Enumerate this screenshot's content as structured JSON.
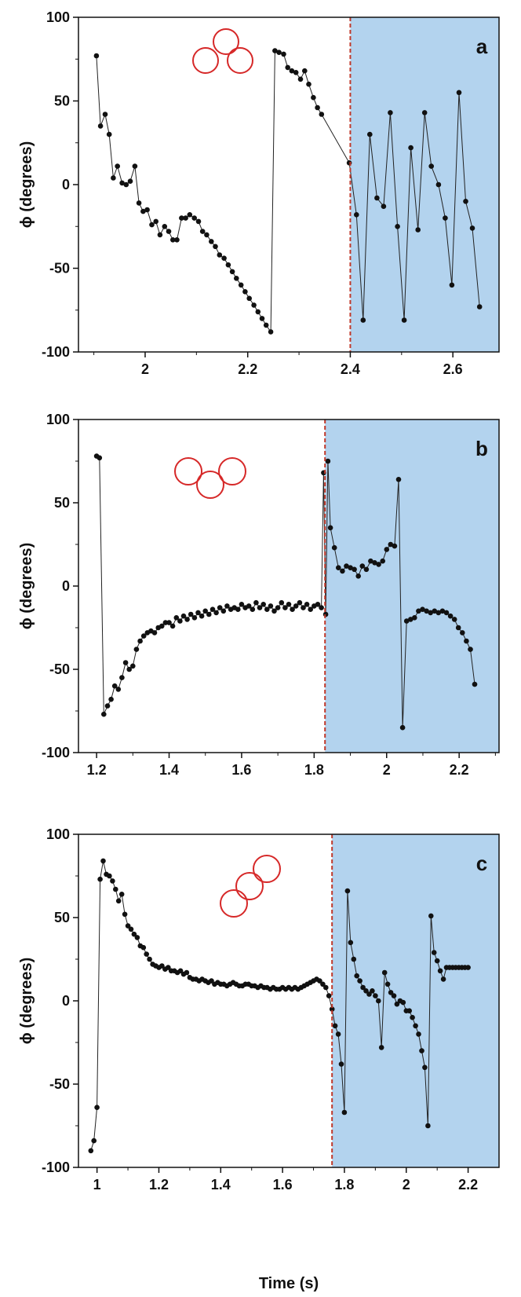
{
  "figure": {
    "xlabel": "Time (s)",
    "ylabel": "ϕ  (degrees)",
    "colors": {
      "shade": "#b3d3ee",
      "marker": "#111111",
      "line": "#222222",
      "divider": "#c0392b",
      "circle": "#d62828"
    }
  },
  "chart_data": [
    {
      "type": "line",
      "panel_label": "a",
      "icon": "three-circles-triangle-icon",
      "xlim": [
        1.87,
        2.69
      ],
      "ylim": [
        -100,
        100
      ],
      "xticks": [
        2,
        2.2,
        2.4,
        2.6
      ],
      "xtick_labels": [
        "2",
        "2.2",
        "2.4",
        "2.6"
      ],
      "yticks": [
        -100,
        -50,
        0,
        50,
        100
      ],
      "ytick_labels": [
        "-100",
        "-50",
        "0",
        "50",
        "100"
      ],
      "transition_x": 2.4,
      "x": [
        1.905,
        1.913,
        1.922,
        1.93,
        1.938,
        1.946,
        1.955,
        1.963,
        1.971,
        1.98,
        1.988,
        1.996,
        2.004,
        2.013,
        2.021,
        2.029,
        2.038,
        2.046,
        2.054,
        2.062,
        2.071,
        2.079,
        2.087,
        2.096,
        2.104,
        2.112,
        2.12,
        2.129,
        2.137,
        2.145,
        2.154,
        2.162,
        2.17,
        2.178,
        2.187,
        2.195,
        2.203,
        2.212,
        2.22,
        2.228,
        2.236,
        2.245,
        2.253,
        2.261,
        2.27,
        2.278,
        2.286,
        2.294,
        2.303,
        2.311,
        2.319,
        2.328,
        2.336,
        2.344,
        2.398,
        2.412,
        2.425,
        2.438,
        2.452,
        2.465,
        2.478,
        2.492,
        2.505,
        2.518,
        2.532,
        2.545,
        2.558,
        2.572,
        2.585,
        2.598,
        2.612,
        2.625,
        2.638,
        2.652
      ],
      "y": [
        77,
        35,
        42,
        30,
        4,
        11,
        1,
        0,
        2,
        11,
        -11,
        -16,
        -15,
        -24,
        -22,
        -30,
        -25,
        -28,
        -33,
        -33,
        -20,
        -20,
        -18,
        -20,
        -22,
        -28,
        -30,
        -34,
        -37,
        -42,
        -44,
        -48,
        -52,
        -56,
        -60,
        -64,
        -68,
        -72,
        -76,
        -80,
        -84,
        -88,
        80,
        79,
        78,
        70,
        68,
        67,
        63,
        68,
        60,
        52,
        46,
        42,
        13,
        -18,
        -81,
        30,
        -8,
        -13,
        43,
        -25,
        -81,
        22,
        -27,
        43,
        11,
        0,
        -20,
        -60,
        55,
        -10,
        -26,
        -73
      ]
    },
    {
      "type": "line",
      "panel_label": "b",
      "icon": "three-circles-chain-icon",
      "xlim": [
        1.15,
        2.31
      ],
      "ylim": [
        -100,
        100
      ],
      "xticks": [
        1.2,
        1.4,
        1.6,
        1.8,
        2,
        2.2
      ],
      "xtick_labels": [
        "1.2",
        "1.4",
        "1.6",
        "1.8",
        "2",
        "2.2"
      ],
      "yticks": [
        -100,
        -50,
        0,
        50,
        100
      ],
      "ytick_labels": [
        "-100",
        "-50",
        "0",
        "50",
        "100"
      ],
      "transition_x": 1.83,
      "x": [
        1.2,
        1.208,
        1.22,
        1.23,
        1.24,
        1.25,
        1.26,
        1.27,
        1.28,
        1.29,
        1.3,
        1.31,
        1.32,
        1.33,
        1.34,
        1.35,
        1.36,
        1.37,
        1.38,
        1.39,
        1.4,
        1.41,
        1.42,
        1.43,
        1.44,
        1.45,
        1.46,
        1.47,
        1.48,
        1.49,
        1.5,
        1.51,
        1.52,
        1.53,
        1.54,
        1.55,
        1.56,
        1.57,
        1.58,
        1.59,
        1.6,
        1.61,
        1.62,
        1.63,
        1.64,
        1.65,
        1.66,
        1.67,
        1.68,
        1.69,
        1.7,
        1.71,
        1.72,
        1.73,
        1.74,
        1.75,
        1.76,
        1.77,
        1.78,
        1.79,
        1.8,
        1.81,
        1.82,
        1.826,
        1.832,
        1.838,
        1.845,
        1.856,
        1.867,
        1.878,
        1.889,
        1.9,
        1.911,
        1.922,
        1.933,
        1.944,
        1.956,
        1.967,
        1.978,
        1.989,
        2.0,
        2.011,
        2.022,
        2.033,
        2.044,
        2.055,
        2.066,
        2.077,
        2.088,
        2.099,
        2.11,
        2.121,
        2.132,
        2.143,
        2.154,
        2.165,
        2.176,
        2.187,
        2.198,
        2.209,
        2.22,
        2.231,
        2.243
      ],
      "y": [
        78,
        77,
        -77,
        -72,
        -68,
        -60,
        -62,
        -55,
        -46,
        -50,
        -48,
        -38,
        -33,
        -30,
        -28,
        -27,
        -28,
        -25,
        -24,
        -22,
        -22,
        -24,
        -19,
        -21,
        -18,
        -20,
        -17,
        -19,
        -16,
        -18,
        -15,
        -17,
        -14,
        -16,
        -13,
        -15,
        -12,
        -14,
        -13,
        -14,
        -11,
        -13,
        -12,
        -14,
        -10,
        -13,
        -11,
        -14,
        -12,
        -15,
        -13,
        -10,
        -13,
        -11,
        -14,
        -12,
        -10,
        -13,
        -11,
        -14,
        -12,
        -11,
        -13,
        68,
        -17,
        75,
        35,
        23,
        11,
        9,
        12,
        11,
        10,
        6,
        12,
        10,
        15,
        14,
        13,
        15,
        22,
        25,
        24,
        64,
        -85,
        -21,
        -20,
        -19,
        -15,
        -14,
        -15,
        -16,
        -15,
        -16,
        -15,
        -16,
        -18,
        -20,
        -25,
        -28,
        -33,
        -38,
        -59
      ]
    },
    {
      "type": "line",
      "panel_label": "c",
      "icon": "three-circles-diagonal-icon",
      "xlim": [
        0.94,
        2.3
      ],
      "ylim": [
        -100,
        100
      ],
      "xticks": [
        1,
        1.2,
        1.4,
        1.6,
        1.8,
        2,
        2.2
      ],
      "xtick_labels": [
        "1",
        "1.2",
        "1.4",
        "1.6",
        "1.8",
        "2",
        "2.2"
      ],
      "yticks": [
        -100,
        -50,
        0,
        50,
        100
      ],
      "ytick_labels": [
        "-100",
        "-50",
        "0",
        "50",
        "100"
      ],
      "transition_x": 1.76,
      "x": [
        0.98,
        0.99,
        1.0,
        1.01,
        1.02,
        1.03,
        1.04,
        1.05,
        1.06,
        1.07,
        1.08,
        1.09,
        1.1,
        1.11,
        1.12,
        1.13,
        1.14,
        1.15,
        1.16,
        1.17,
        1.18,
        1.19,
        1.2,
        1.21,
        1.22,
        1.23,
        1.24,
        1.25,
        1.26,
        1.27,
        1.28,
        1.29,
        1.3,
        1.31,
        1.32,
        1.33,
        1.34,
        1.35,
        1.36,
        1.37,
        1.38,
        1.39,
        1.4,
        1.41,
        1.42,
        1.43,
        1.44,
        1.45,
        1.46,
        1.47,
        1.48,
        1.49,
        1.5,
        1.51,
        1.52,
        1.53,
        1.54,
        1.55,
        1.56,
        1.57,
        1.58,
        1.59,
        1.6,
        1.61,
        1.62,
        1.63,
        1.64,
        1.65,
        1.66,
        1.67,
        1.68,
        1.69,
        1.7,
        1.71,
        1.72,
        1.73,
        1.74,
        1.75,
        1.76,
        1.77,
        1.78,
        1.79,
        1.8,
        1.81,
        1.82,
        1.83,
        1.84,
        1.85,
        1.86,
        1.87,
        1.88,
        1.89,
        1.9,
        1.91,
        1.92,
        1.93,
        1.94,
        1.95,
        1.96,
        1.97,
        1.98,
        1.99,
        2.0,
        2.01,
        2.02,
        2.03,
        2.04,
        2.05,
        2.06,
        2.07,
        2.08,
        2.09,
        2.1,
        2.11,
        2.12,
        2.13,
        2.14,
        2.15,
        2.16,
        2.17,
        2.18,
        2.19,
        2.2
      ],
      "y": [
        -90,
        -84,
        -64,
        73,
        84,
        76,
        75,
        72,
        67,
        60,
        64,
        52,
        45,
        43,
        40,
        38,
        33,
        32,
        28,
        25,
        22,
        21,
        20,
        21,
        19,
        20,
        18,
        18,
        17,
        18,
        16,
        17,
        14,
        13,
        13,
        12,
        13,
        12,
        11,
        12,
        10,
        11,
        10,
        10,
        9,
        10,
        11,
        10,
        9,
        9,
        10,
        10,
        9,
        9,
        8,
        9,
        8,
        8,
        7,
        8,
        7,
        7,
        8,
        7,
        8,
        7,
        8,
        7,
        8,
        9,
        10,
        11,
        12,
        13,
        12,
        10,
        8,
        3,
        -5,
        -15,
        -20,
        -38,
        -67,
        66,
        35,
        25,
        15,
        12,
        8,
        6,
        4,
        6,
        3,
        0,
        -28,
        17,
        10,
        5,
        3,
        -2,
        0,
        -1,
        -6,
        -6,
        -10,
        -15,
        -20,
        -30,
        -40,
        -75,
        51,
        29,
        24,
        18,
        13,
        20,
        20,
        20,
        20,
        20,
        20,
        20,
        20
      ]
    }
  ]
}
